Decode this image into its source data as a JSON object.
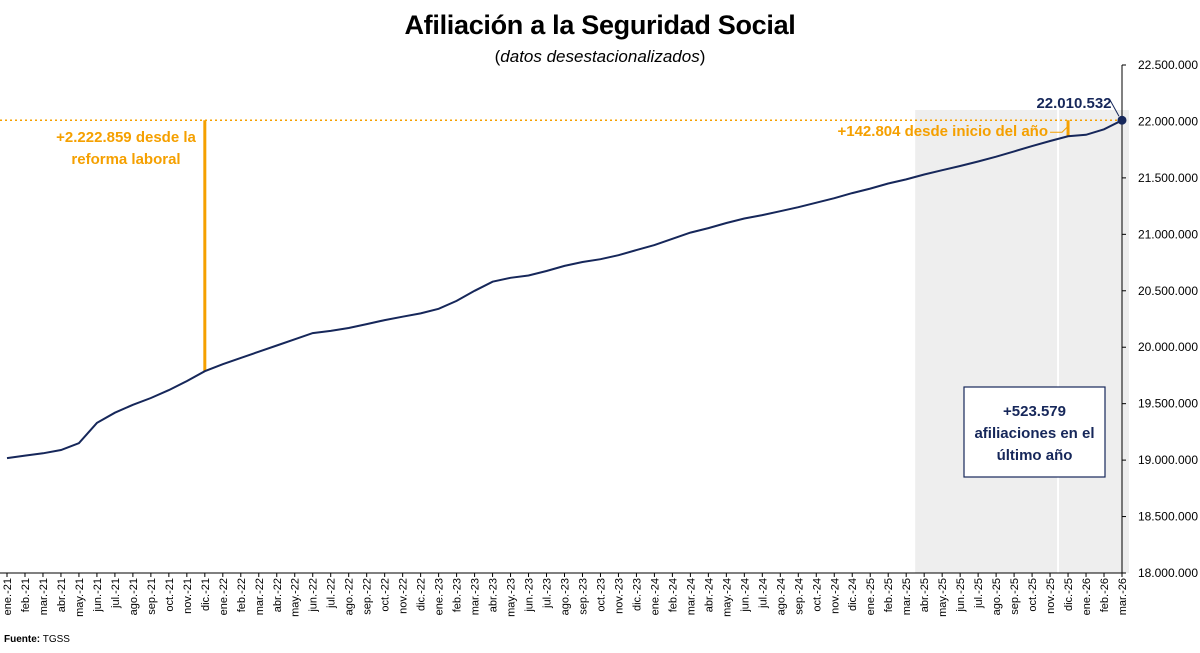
{
  "header": {
    "title": "Afiliación a la Seguridad Social",
    "subtitle_open": "(",
    "subtitle_text": "datos desestacionalizados",
    "subtitle_close": ")"
  },
  "source": {
    "label": "Fuente:",
    "value": "TGSS"
  },
  "colors": {
    "line": "#16275a",
    "accent": "#f5a000",
    "shade": "#eeeeee",
    "box_border": "#16275a"
  },
  "chart_data": {
    "type": "line",
    "title": "Afiliación a la Seguridad Social",
    "subtitle": "(datos desestacionalizados)",
    "categories": [
      "ene.-21",
      "feb.-21",
      "mar.-21",
      "abr.-21",
      "may.-21",
      "jun.-21",
      "jul.-21",
      "ago.-21",
      "sep.-21",
      "oct.-21",
      "nov.-21",
      "dic.-21",
      "ene.-22",
      "feb.-22",
      "mar.-22",
      "abr.-22",
      "may.-22",
      "jun.-22",
      "jul.-22",
      "ago.-22",
      "sep.-22",
      "oct.-22",
      "nov.-22",
      "dic.-22",
      "ene.-23",
      "feb.-23",
      "mar.-23",
      "abr.-23",
      "may.-23",
      "jun.-23",
      "jul.-23",
      "ago.-23",
      "sep.-23",
      "oct.-23",
      "nov.-23",
      "dic.-23",
      "ene.-24",
      "feb.-24",
      "mar.-24",
      "abr.-24",
      "may.-24",
      "jun.-24",
      "jul.-24",
      "ago.-24",
      "sep.-24",
      "oct.-24",
      "nov.-24",
      "dic.-24",
      "ene.-25",
      "feb.-25",
      "mar.-25",
      "abr.-25",
      "may.-25",
      "jun.-25",
      "jul.-25",
      "ago.-25",
      "sep.-25",
      "oct.-25",
      "nov.-25",
      "dic.-25",
      "ene.-26",
      "feb.-26",
      "mar.-26"
    ],
    "values": [
      19018000,
      19040000,
      19060000,
      19090000,
      19150000,
      19330000,
      19420000,
      19490000,
      19550000,
      19620000,
      19700000,
      19788000,
      19850000,
      19905000,
      19960000,
      20015000,
      20070000,
      20125000,
      20145000,
      20170000,
      20205000,
      20240000,
      20270000,
      20300000,
      20340000,
      20410000,
      20500000,
      20580000,
      20615000,
      20635000,
      20675000,
      20720000,
      20755000,
      20780000,
      20815000,
      20860000,
      20905000,
      20960000,
      21015000,
      21055000,
      21100000,
      21140000,
      21170000,
      21205000,
      21240000,
      21280000,
      21320000,
      21365000,
      21405000,
      21450000,
      21487000,
      21530000,
      21568000,
      21605000,
      21645000,
      21688000,
      21735000,
      21782000,
      21827000,
      21868000,
      21882000,
      21930000,
      22010532
    ],
    "ylim": [
      18000000,
      22500000
    ],
    "yticks": [
      "18.000.000",
      "18.500.000",
      "19.000.000",
      "19.500.000",
      "20.000.000",
      "20.500.000",
      "21.000.000",
      "21.500.000",
      "22.000.000",
      "22.500.000"
    ],
    "ytick_values": [
      18000000,
      18500000,
      19000000,
      19500000,
      20000000,
      20500000,
      21000000,
      21500000,
      22000000,
      22500000
    ],
    "y_axis_side": "right",
    "grid": false,
    "legend": "none",
    "shaded_ranges": [
      {
        "from": "abr.-25",
        "to": "nov.-25"
      },
      {
        "from": "dic.-25",
        "to": "mar.-26"
      }
    ],
    "reference_line": {
      "value": 22010532,
      "style": "dotted"
    },
    "annotations": {
      "reforma": {
        "line1": "+2.222.859 desde la",
        "line2": "reforma laboral",
        "at": "dic.-21"
      },
      "inicio_ano": {
        "text": "+142.804 desde inicio del año",
        "at": "dic.-25"
      },
      "last_value": {
        "text": "22.010.532",
        "at": "mar.-26"
      },
      "ultimo_ano": {
        "line1": "+523.579",
        "line2": "afiliaciones en el",
        "line3": "último año"
      }
    }
  }
}
